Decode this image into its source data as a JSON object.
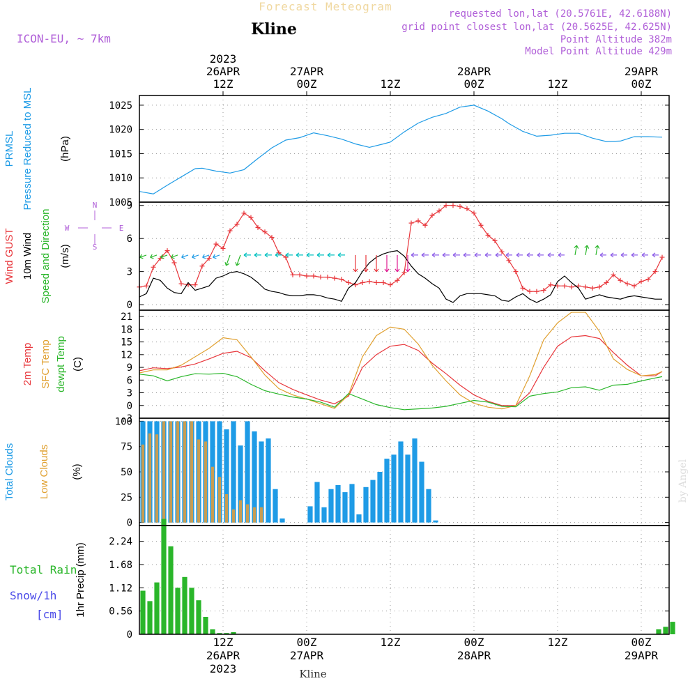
{
  "header": {
    "title": "Forecast Meteogram",
    "location": "Kline",
    "model": "ICON-EU, ~ 7km",
    "requested": "requested lon,lat (20.5761E, 42.6188N)",
    "grid": "grid point closest lon,lat (20.5625E, 42.625N)",
    "point_alt": "Point Altitude 382m",
    "model_alt": "Model Point Altitude 429m",
    "footer": "Kline",
    "credit": "by Angel"
  },
  "time_axis": {
    "ticks": [
      {
        "hour": 12,
        "top": [
          "2023",
          "26APR",
          "12Z"
        ],
        "bottom": [
          "12Z",
          "26APR",
          "2023"
        ]
      },
      {
        "hour": 24,
        "top": [
          "27APR",
          "00Z"
        ],
        "bottom": [
          "00Z",
          "27APR"
        ]
      },
      {
        "hour": 36,
        "top": [
          "12Z"
        ],
        "bottom": [
          "12Z"
        ]
      },
      {
        "hour": 48,
        "top": [
          "28APR",
          "00Z"
        ],
        "bottom": [
          "00Z",
          "28APR"
        ]
      },
      {
        "hour": 60,
        "top": [
          "12Z"
        ],
        "bottom": [
          "12Z"
        ]
      },
      {
        "hour": 72,
        "top": [
          "29APR",
          "00Z"
        ],
        "bottom": [
          "00Z",
          "29APR"
        ]
      }
    ]
  },
  "chart_data": [
    {
      "type": "line",
      "panel": "pressure",
      "ylabels": [
        {
          "text": "PRMSL",
          "color": "#1e9be6"
        },
        {
          "text": "Pressure Reduced to MSL",
          "color": "#1e9be6"
        },
        {
          "text": "(hPa)",
          "color": "#000000"
        }
      ],
      "ylim": [
        1005,
        1027
      ],
      "yticks": [
        1005,
        1010,
        1015,
        1020,
        1025
      ],
      "grid": true,
      "x": [
        0,
        2,
        4,
        6,
        8,
        9,
        11,
        13,
        15,
        17,
        19,
        21,
        23,
        25,
        27,
        29,
        31,
        33,
        35,
        36,
        38,
        40,
        42,
        44,
        46,
        48,
        50,
        52,
        53,
        55,
        57,
        59,
        61,
        63,
        65,
        67,
        69,
        71,
        73,
        75
      ],
      "series": [
        {
          "color": "#1e9be6",
          "values": [
            1007.2,
            1006.7,
            1008.5,
            1010.2,
            1011.9,
            1012.0,
            1011.4,
            1011.0,
            1011.7,
            1014.0,
            1016.2,
            1017.8,
            1018.3,
            1019.3,
            1018.7,
            1018.0,
            1017.0,
            1016.3,
            1017.0,
            1017.4,
            1019.5,
            1021.3,
            1022.5,
            1023.3,
            1024.6,
            1025.0,
            1023.8,
            1022.2,
            1021.2,
            1019.6,
            1018.6,
            1018.8,
            1019.2,
            1019.2,
            1018.2,
            1017.5,
            1017.6,
            1018.5,
            1018.5,
            1018.4
          ]
        }
      ]
    },
    {
      "type": "line",
      "panel": "wind",
      "ylabels": [
        {
          "text": "Wind GUST",
          "color": "#e8363b"
        },
        {
          "text": "10m Wind",
          "color": "#000000"
        },
        {
          "text": "Speed and Direction",
          "color": "#2ab62a"
        },
        {
          "text": "(m/s)",
          "color": "#000000"
        }
      ],
      "compass": {
        "n": "N",
        "s": "S",
        "e": "E",
        "w": "W"
      },
      "ylim": [
        -0.5,
        9.3
      ],
      "yticks": [
        0,
        3,
        6,
        9
      ],
      "grid": true,
      "x": [
        0,
        1,
        2,
        3,
        4,
        5,
        6,
        7,
        8,
        9,
        10,
        11,
        12,
        13,
        14,
        15,
        16,
        17,
        18,
        19,
        20,
        21,
        22,
        23,
        24,
        25,
        26,
        27,
        28,
        29,
        30,
        31,
        32,
        33,
        34,
        35,
        36,
        37,
        38,
        39,
        40,
        41,
        42,
        43,
        44,
        45,
        46,
        47,
        48,
        49,
        50,
        51,
        52,
        53,
        54,
        55,
        56,
        57,
        58,
        59,
        60,
        61,
        62,
        63,
        64,
        65,
        66,
        67,
        68,
        69,
        70,
        71,
        72,
        73,
        74,
        75
      ],
      "series": [
        {
          "name": "Wind GUST",
          "color": "#e8363b",
          "marker": "+",
          "values": [
            1.6,
            1.7,
            3.4,
            4.2,
            4.9,
            3.8,
            1.9,
            1.8,
            1.8,
            3.5,
            4.2,
            5.5,
            5.1,
            6.7,
            7.3,
            8.3,
            7.9,
            7.0,
            6.6,
            6.1,
            4.7,
            4.3,
            2.7,
            2.7,
            2.6,
            2.6,
            2.5,
            2.5,
            2.4,
            2.3,
            2.0,
            1.8,
            2.0,
            2.1,
            2.0,
            2.0,
            1.8,
            2.2,
            2.9,
            7.4,
            7.6,
            7.2,
            8.1,
            8.5,
            9.0,
            9.0,
            8.9,
            8.7,
            8.3,
            7.2,
            6.3,
            5.8,
            4.8,
            4.0,
            3.0,
            1.5,
            1.2,
            1.2,
            1.3,
            1.8,
            1.7,
            1.7,
            1.6,
            1.7,
            1.6,
            1.5,
            1.6,
            2.0,
            2.7,
            2.2,
            1.9,
            1.7,
            2.1,
            2.3,
            3.0,
            4.3
          ]
        },
        {
          "name": "10m Wind",
          "color": "#000000",
          "values": [
            0.7,
            1.0,
            2.4,
            2.2,
            1.5,
            1.1,
            1.0,
            2.0,
            1.3,
            1.5,
            1.7,
            2.4,
            2.6,
            2.9,
            3.0,
            2.8,
            2.5,
            2.0,
            1.4,
            1.2,
            1.1,
            0.9,
            0.8,
            0.8,
            0.9,
            0.9,
            0.8,
            0.6,
            0.5,
            0.3,
            1.5,
            2.0,
            3.0,
            3.8,
            4.3,
            4.6,
            4.8,
            4.9,
            4.4,
            3.5,
            2.8,
            2.4,
            1.9,
            1.5,
            0.5,
            0.2,
            0.8,
            1.0,
            1.0,
            1.0,
            0.9,
            0.8,
            0.4,
            0.3,
            0.7,
            1.0,
            0.5,
            0.2,
            0.5,
            0.9,
            2.1,
            2.6,
            2.0,
            1.5,
            0.5,
            0.7,
            0.9,
            0.7,
            0.6,
            0.5,
            0.7,
            0.8,
            0.7,
            0.6,
            0.5,
            0.5
          ]
        }
      ],
      "direction_arrows": true
    },
    {
      "type": "line",
      "panel": "temperature",
      "ylabels": [
        {
          "text": "2m Temp",
          "color": "#e8363b"
        },
        {
          "text": "SFC Temp",
          "color": "#e0a030"
        },
        {
          "text": "dewpt Temp",
          "color": "#2ab62a"
        },
        {
          "text": "(C)",
          "color": "#000000"
        }
      ],
      "ylim": [
        -3,
        22.5
      ],
      "yticks": [
        -3,
        0,
        3,
        6,
        9,
        12,
        15,
        18,
        21
      ],
      "grid": true,
      "x": [
        0,
        2,
        4,
        6,
        8,
        10,
        12,
        14,
        16,
        18,
        20,
        22,
        24,
        26,
        28,
        30,
        32,
        34,
        36,
        38,
        40,
        42,
        44,
        46,
        48,
        50,
        52,
        54,
        56,
        58,
        60,
        62,
        64,
        66,
        68,
        70,
        72,
        74,
        75
      ],
      "series": [
        {
          "name": "2m Temp",
          "color": "#e8363b",
          "values": [
            8.2,
            8.9,
            8.7,
            9.1,
            9.8,
            11.0,
            12.3,
            12.8,
            11.3,
            8.2,
            5.4,
            3.8,
            2.5,
            1.3,
            0.4,
            2.2,
            9.0,
            12.0,
            14.0,
            14.4,
            13.0,
            10.0,
            7.5,
            4.8,
            2.5,
            1.0,
            0.0,
            0.0,
            3.0,
            9.0,
            14.0,
            16.2,
            16.5,
            15.8,
            12.5,
            9.5,
            7.0,
            7.0,
            8.0
          ]
        },
        {
          "name": "SFC Temp",
          "color": "#e0a030",
          "values": [
            7.7,
            8.4,
            8.4,
            9.5,
            11.5,
            13.5,
            16.0,
            15.5,
            11.5,
            7.2,
            4.0,
            2.5,
            1.5,
            0.4,
            -0.7,
            2.5,
            11.5,
            16.5,
            18.5,
            18.0,
            14.5,
            9.5,
            5.8,
            2.5,
            0.5,
            -0.4,
            -0.8,
            0.0,
            7.0,
            15.5,
            19.5,
            22.0,
            22.0,
            17.5,
            11.0,
            8.5,
            7.0,
            7.3,
            8.0
          ]
        },
        {
          "name": "dewpt Temp",
          "color": "#2ab62a",
          "values": [
            7.4,
            7.0,
            5.8,
            6.8,
            7.5,
            7.4,
            7.6,
            6.8,
            5.0,
            3.5,
            2.7,
            2.0,
            1.5,
            0.8,
            -0.4,
            2.8,
            1.5,
            0.2,
            -0.5,
            -1.0,
            -0.8,
            -0.6,
            -0.2,
            0.5,
            1.2,
            0.8,
            -0.2,
            -0.3,
            2.2,
            2.8,
            3.2,
            4.2,
            4.4,
            3.6,
            4.8,
            5.0,
            5.8,
            6.5,
            6.8
          ]
        }
      ]
    },
    {
      "type": "bar",
      "panel": "clouds",
      "ylabels": [
        {
          "text": "Total Clouds",
          "color": "#1e9be6"
        },
        {
          "text": "Low Clouds",
          "color": "#e0a030"
        },
        {
          "text": "(%)",
          "color": "#000000"
        }
      ],
      "ylim": [
        -3,
        103
      ],
      "yticks": [
        0,
        25,
        50,
        75,
        100
      ],
      "grid": true,
      "x_start": 0,
      "series": [
        {
          "name": "Total Clouds",
          "color": "#1e9be6",
          "values": [
            100,
            100,
            100,
            100,
            100,
            100,
            100,
            100,
            100,
            100,
            100,
            100,
            92,
            100,
            76,
            100,
            90,
            80,
            83,
            33,
            4,
            0,
            0,
            0,
            16,
            40,
            15,
            33,
            37,
            30,
            38,
            8,
            35,
            42,
            50,
            63,
            67,
            80,
            67,
            83,
            60,
            33,
            2,
            0,
            0,
            0,
            0,
            0,
            0,
            0,
            0,
            0,
            0,
            0,
            0,
            0,
            0,
            0,
            0,
            0,
            0,
            0,
            0,
            0,
            0,
            0,
            0,
            0,
            0,
            0,
            0,
            0,
            0,
            0,
            0,
            0,
            0
          ]
        },
        {
          "name": "Low Clouds",
          "color": "#c89d52",
          "values": [
            77,
            88,
            87,
            100,
            100,
            100,
            100,
            100,
            82,
            80,
            55,
            45,
            28,
            13,
            22,
            18,
            15,
            15,
            0,
            0,
            0,
            0,
            0,
            0,
            0,
            0,
            0,
            0,
            0,
            0,
            0,
            0,
            0,
            0,
            0,
            0,
            0,
            0,
            0,
            0,
            0,
            0,
            0,
            0,
            0,
            0,
            0,
            0,
            0,
            0,
            0,
            0,
            0,
            0,
            0,
            0,
            0,
            0,
            0,
            0,
            0,
            0,
            0,
            0,
            0,
            0,
            0,
            0,
            0,
            0,
            0,
            0,
            0,
            0,
            0,
            0,
            0
          ]
        }
      ]
    },
    {
      "type": "bar",
      "panel": "precip",
      "ylabels": [
        {
          "text": "1hr Precip (mm)",
          "color": "#000000"
        }
      ],
      "side_labels": [
        {
          "text": "Total  Rain",
          "color": "#2ab62a"
        },
        {
          "text": "Snow/1h",
          "color": "#4a4ae8"
        },
        {
          "text": "[cm]",
          "color": "#4a4ae8"
        }
      ],
      "ylim": [
        0,
        2.62
      ],
      "yticks": [
        0,
        0.56,
        1.12,
        1.68,
        2.24
      ],
      "grid": true,
      "x_start": 0,
      "series": [
        {
          "name": "Total Rain",
          "color": "#2ab62a",
          "values": [
            1.05,
            0.8,
            1.25,
            2.78,
            2.12,
            1.12,
            1.38,
            1.12,
            0.82,
            0.42,
            0.12,
            0.03,
            0.03,
            0.05,
            0,
            0,
            0,
            0,
            0,
            0,
            0,
            0,
            0,
            0,
            0,
            0,
            0,
            0,
            0,
            0,
            0,
            0,
            0,
            0,
            0,
            0,
            0,
            0,
            0,
            0,
            0,
            0,
            0,
            0,
            0,
            0,
            0,
            0,
            0,
            0,
            0,
            0,
            0,
            0,
            0,
            0,
            0,
            0,
            0,
            0,
            0,
            0,
            0,
            0,
            0,
            0,
            0,
            0,
            0,
            0,
            0,
            0,
            0,
            0,
            0.12,
            0.18,
            0.3
          ]
        }
      ]
    }
  ]
}
